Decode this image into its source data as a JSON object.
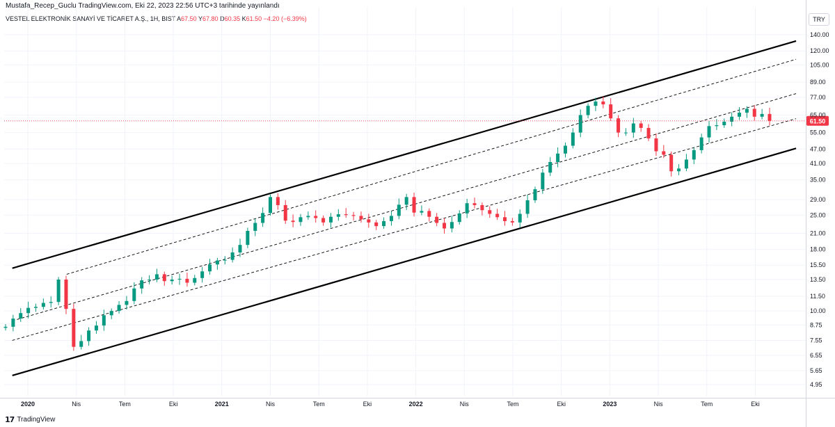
{
  "attribution": "Mustafa_Recep_Guclu TradingView.com, Eki 22, 2023 22:56 UTC+3 tarihinde yayınlandı",
  "legend": {
    "symbol": "VESTEL ELEKTRONİK SANAYİ VE TİCARET A.Ş., 1H, BIST",
    "open_label": "A",
    "open": "67.50",
    "high_label": "Y",
    "high": "67.80",
    "low_label": "D",
    "low": "60.35",
    "close_label": "K",
    "close": "61.50",
    "change": "−4.20 (−6.39%)"
  },
  "currency": "TRY",
  "brand": "TradingView",
  "colors": {
    "up": "#089981",
    "down": "#f23645",
    "channel": "#000000",
    "grid": "#f0f3fa",
    "price_line": "#f23645"
  },
  "chart_data": {
    "type": "candlestick",
    "y_scale": "log",
    "y_ticks": [
      "140.00",
      "120.00",
      "105.00",
      "89.00",
      "77.00",
      "65.00",
      "55.00",
      "47.00",
      "41.00",
      "35.00",
      "29.00",
      "25.00",
      "21.00",
      "18.00",
      "15.50",
      "13.50",
      "11.50",
      "10.00",
      "8.75",
      "7.55",
      "6.55",
      "5.65",
      "4.95"
    ],
    "x_ticks": [
      {
        "t": 0.0,
        "label": "2020"
      },
      {
        "t": 0.25,
        "label": "Nis"
      },
      {
        "t": 0.5,
        "label": "Tem"
      },
      {
        "t": 0.75,
        "label": "Eki"
      },
      {
        "t": 1.0,
        "label": "2021"
      },
      {
        "t": 1.25,
        "label": "Nis"
      },
      {
        "t": 1.5,
        "label": "Tem"
      },
      {
        "t": 1.75,
        "label": "Eki"
      },
      {
        "t": 2.0,
        "label": "2022"
      },
      {
        "t": 2.25,
        "label": "Nis"
      },
      {
        "t": 2.5,
        "label": "Tem"
      },
      {
        "t": 2.75,
        "label": "Eki"
      },
      {
        "t": 3.0,
        "label": "2023"
      },
      {
        "t": 3.25,
        "label": "Nis"
      },
      {
        "t": 3.5,
        "label": "Tem"
      },
      {
        "t": 3.75,
        "label": "Eki"
      }
    ],
    "last_price": "61.50",
    "closes": [
      8.6,
      9.3,
      9.8,
      10.3,
      10.4,
      10.8,
      10.9,
      13.5,
      10.2,
      7.1,
      7.5,
      8.3,
      8.7,
      9.6,
      10.0,
      10.6,
      11.0,
      12.4,
      13.4,
      13.5,
      14.2,
      13.3,
      13.5,
      13.6,
      13.1,
      13.7,
      14.6,
      15.6,
      16.2,
      16.3,
      17.5,
      18.8,
      21.5,
      23.2,
      25.5,
      29.7,
      27.5,
      23.7,
      23.4,
      24.5,
      24.8,
      24.3,
      23.3,
      24.6,
      25.2,
      25.0,
      24.8,
      24.0,
      23.3,
      22.5,
      23.6,
      24.8,
      27.6,
      29.7,
      25.6,
      26.0,
      24.6,
      23.2,
      22.0,
      23.4,
      25.4,
      28.0,
      27.5,
      26.2,
      25.3,
      24.5,
      23.6,
      23.3,
      25.3,
      28.8,
      32.0,
      37.5,
      41.5,
      45.0,
      48.5,
      55.0,
      65.0,
      71.0,
      74.0,
      72.0,
      63.0,
      55.0,
      55.0,
      60.0,
      57.5,
      52.0,
      46.0,
      44.5,
      38.0,
      39.0,
      42.5,
      46.5,
      52.5,
      58.5,
      59.0,
      61.0,
      64.0,
      66.5,
      69.0,
      64.0,
      65.7,
      61.5
    ],
    "channel": {
      "outer_upper": [
        [
          2019.92,
          15.05
        ],
        [
          2023.96,
          131.9
        ]
      ],
      "outer_lower": [
        [
          2019.92,
          5.4
        ],
        [
          2023.96,
          47.3
        ]
      ],
      "inner_lines": [
        {
          "from": [
            2019.92,
            9.1
          ],
          "to": [
            2023.96,
            79.8
          ]
        },
        {
          "from": [
            2019.92,
            7.55
          ],
          "to": [
            2023.96,
            62.8
          ]
        },
        {
          "from": [
            2020.2,
            14.2
          ],
          "to": [
            2023.96,
            110.8
          ]
        }
      ]
    }
  }
}
